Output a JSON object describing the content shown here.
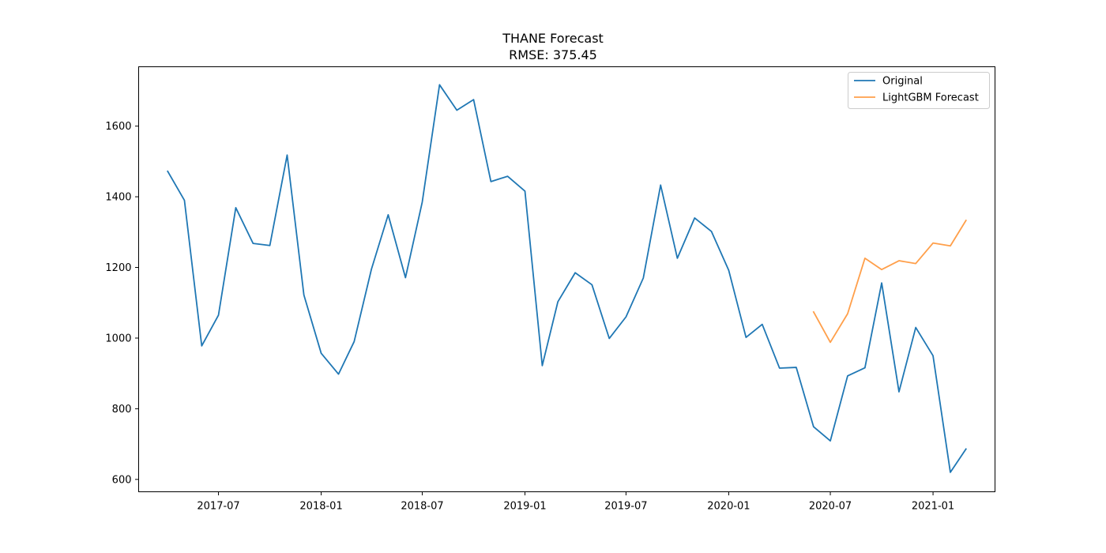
{
  "chart_data": {
    "type": "line",
    "title": "THANE Forecast",
    "subtitle": "RMSE: 375.45",
    "xlabel": "",
    "ylabel": "",
    "xlim": [
      "2017-02-08",
      "2021-04-22"
    ],
    "ylim": [
      565,
      1768
    ],
    "grid": false,
    "legend_position": "top-right",
    "x_ticks": [
      "2017-07",
      "2018-01",
      "2018-07",
      "2019-01",
      "2019-07",
      "2020-01",
      "2020-07",
      "2021-01"
    ],
    "y_ticks": [
      600,
      800,
      1000,
      1200,
      1400,
      1600
    ],
    "series": [
      {
        "name": "Original",
        "color": "#1f77b4",
        "x": [
          "2017-04",
          "2017-05",
          "2017-06",
          "2017-07",
          "2017-08",
          "2017-09",
          "2017-10",
          "2017-11",
          "2017-12",
          "2018-01",
          "2018-02",
          "2018-03",
          "2018-04",
          "2018-05",
          "2018-06",
          "2018-07",
          "2018-08",
          "2018-09",
          "2018-10",
          "2018-11",
          "2018-12",
          "2019-01",
          "2019-02",
          "2019-03",
          "2019-04",
          "2019-05",
          "2019-06",
          "2019-07",
          "2019-08",
          "2019-09",
          "2019-10",
          "2019-11",
          "2019-12",
          "2020-01",
          "2020-02",
          "2020-03",
          "2020-04",
          "2020-05",
          "2020-06",
          "2020-07",
          "2020-08",
          "2020-09",
          "2020-10",
          "2020-11",
          "2020-12",
          "2021-01",
          "2021-02",
          "2021-03"
        ],
        "values": [
          1472,
          1390,
          978,
          1065,
          1369,
          1268,
          1262,
          1518,
          1122,
          957,
          898,
          990,
          1195,
          1349,
          1171,
          1385,
          1717,
          1645,
          1675,
          1443,
          1458,
          1416,
          922,
          1103,
          1185,
          1151,
          999,
          1060,
          1170,
          1433,
          1226,
          1340,
          1302,
          1192,
          1002,
          1039,
          915,
          917,
          749,
          709,
          893,
          916,
          1156,
          848,
          1030,
          950,
          620,
          686
        ]
      },
      {
        "name": "LightGBM Forecast",
        "color": "#ff7f0e",
        "x": [
          "2020-06",
          "2020-07",
          "2020-08",
          "2020-09",
          "2020-10",
          "2020-11",
          "2020-12",
          "2021-01",
          "2021-02",
          "2021-03"
        ],
        "values": [
          1074,
          988,
          1069,
          1226,
          1194,
          1219,
          1211,
          1269,
          1261,
          1333
        ]
      }
    ]
  }
}
